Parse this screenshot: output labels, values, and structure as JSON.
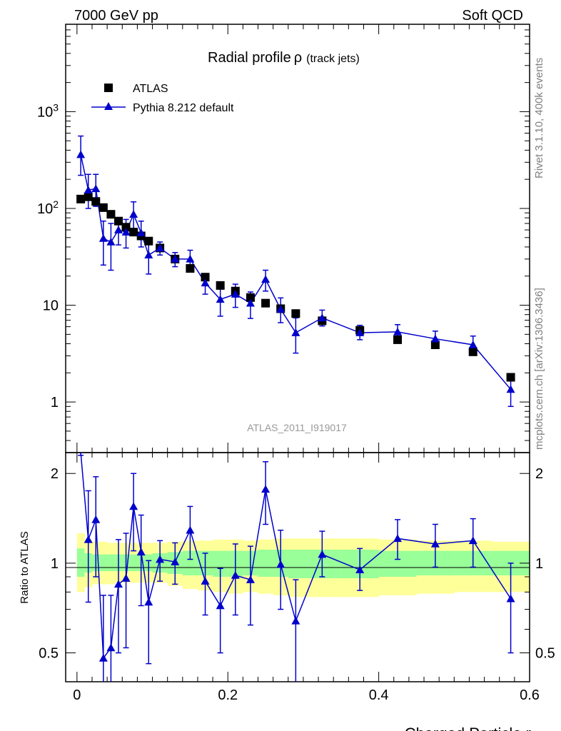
{
  "header": {
    "left": "7000 GeV pp",
    "right": "Soft QCD",
    "side_top": "Rivet 3.1.10,  400k events",
    "side_bottom": "mcplots.cern.ch [arXiv:1306.3436]"
  },
  "main_title": "Radial profile",
  "main_title_rho": "ρ",
  "main_title_sub": "(track jets)",
  "analysis_id": "ATLAS_2011_I919017",
  "legend": {
    "data": "ATLAS",
    "mc": "Pythia 8.212 default"
  },
  "colors": {
    "data": "#000000",
    "mc": "#0000cc",
    "band_yellow": "#ffff99",
    "band_green": "#99ff99"
  },
  "chart_data": [
    {
      "type": "scatter",
      "panel": "main",
      "title": "Radial profile ρ (track jets)",
      "xlabel": "Charged Particle r",
      "ylabel": "",
      "yscale": "log",
      "xlim": [
        -0.015,
        0.6
      ],
      "ylim": [
        0.3,
        8000
      ],
      "ytick_labels": [
        "1",
        "10",
        "10²",
        "10³"
      ],
      "xtick_labels": [
        "0",
        "0.2",
        "0.4",
        "0.6"
      ],
      "series": [
        {
          "name": "ATLAS",
          "x": [
            0.005,
            0.015,
            0.025,
            0.035,
            0.045,
            0.055,
            0.065,
            0.075,
            0.085,
            0.095,
            0.11,
            0.13,
            0.15,
            0.17,
            0.19,
            0.21,
            0.23,
            0.25,
            0.27,
            0.29,
            0.325,
            0.375,
            0.425,
            0.475,
            0.525,
            0.575
          ],
          "y": [
            125,
            132,
            118,
            102,
            87,
            74,
            64,
            57,
            52,
            46,
            39,
            30,
            24,
            19.5,
            16,
            14,
            12,
            10.5,
            9.2,
            8.2,
            6.9,
            5.5,
            4.4,
            3.9,
            3.3,
            1.8
          ]
        },
        {
          "name": "Pythia 8.212 default",
          "x": [
            0.005,
            0.015,
            0.025,
            0.035,
            0.045,
            0.055,
            0.065,
            0.075,
            0.085,
            0.095,
            0.11,
            0.13,
            0.15,
            0.17,
            0.19,
            0.21,
            0.23,
            0.25,
            0.27,
            0.29,
            0.325,
            0.375,
            0.425,
            0.475,
            0.525,
            0.575
          ],
          "y": [
            360,
            155,
            160,
            49,
            45,
            60,
            57,
            87,
            56,
            33,
            39,
            30,
            30,
            17,
            11.5,
            13,
            10.5,
            18.5,
            9.1,
            5.2,
            7.4,
            5.2,
            5.3,
            4.5,
            3.9,
            1.35
          ],
          "yerr_low": [
            140,
            55,
            55,
            23,
            22,
            18,
            18,
            25,
            16,
            12,
            6,
            5,
            6,
            4,
            3.8,
            3.5,
            3.2,
            4.5,
            2.5,
            2.0,
            1.3,
            0.8,
            0.9,
            0.8,
            0.8,
            0.45
          ],
          "yerr_high": [
            200,
            70,
            65,
            25,
            25,
            20,
            20,
            30,
            18,
            14,
            6,
            5,
            7,
            4,
            3.8,
            3.5,
            3.2,
            4.5,
            2.8,
            2.2,
            1.5,
            1.0,
            1.0,
            0.9,
            0.9,
            0.5
          ]
        }
      ]
    },
    {
      "type": "line",
      "panel": "ratio",
      "xlabel": "Charged Particle r",
      "ylabel": "Ratio to ATLAS",
      "yscale": "log",
      "xlim": [
        -0.015,
        0.6
      ],
      "ylim": [
        0.4,
        2.35
      ],
      "ytick_labels": [
        "0.5",
        "1",
        "2"
      ],
      "xtick_labels": [
        "0",
        "0.2",
        "0.4",
        "0.6"
      ],
      "series": [
        {
          "name": "Pythia 8.212 default",
          "x": [
            0.005,
            0.015,
            0.025,
            0.035,
            0.045,
            0.055,
            0.065,
            0.075,
            0.085,
            0.095,
            0.11,
            0.13,
            0.15,
            0.17,
            0.19,
            0.21,
            0.23,
            0.25,
            0.27,
            0.29,
            0.325,
            0.375,
            0.425,
            0.475,
            0.525,
            0.575
          ],
          "y": [
            2.9,
            1.2,
            1.4,
            0.48,
            0.52,
            0.85,
            0.89,
            1.55,
            1.09,
            0.74,
            1.03,
            1.01,
            1.29,
            0.87,
            0.72,
            0.91,
            0.88,
            1.77,
            0.99,
            0.64,
            1.07,
            0.95,
            1.21,
            1.16,
            1.19,
            0.76
          ],
          "y_low": [
            2.3,
            0.74,
            0.9,
            0.15,
            0.1,
            0.5,
            0.52,
            1.1,
            0.72,
            0.46,
            0.87,
            0.85,
            1.03,
            0.67,
            0.5,
            0.67,
            0.62,
            1.35,
            0.7,
            0.4,
            0.9,
            0.81,
            1.03,
            0.97,
            0.97,
            0.5
          ],
          "y_high": [
            3.6,
            1.75,
            1.95,
            0.78,
            0.78,
            1.2,
            1.26,
            2.0,
            1.45,
            1.02,
            1.19,
            1.17,
            1.55,
            1.08,
            0.96,
            1.16,
            1.14,
            2.19,
            1.29,
            0.88,
            1.28,
            1.12,
            1.4,
            1.35,
            1.41,
            1.0
          ]
        }
      ],
      "bands": {
        "edges": [
          0.0,
          0.01,
          0.02,
          0.03,
          0.04,
          0.05,
          0.06,
          0.07,
          0.08,
          0.09,
          0.1,
          0.12,
          0.14,
          0.16,
          0.18,
          0.2,
          0.22,
          0.24,
          0.26,
          0.28,
          0.3,
          0.35,
          0.4,
          0.45,
          0.5,
          0.55,
          0.6
        ],
        "yellow_low": [
          0.8,
          0.83,
          0.85,
          0.85,
          0.85,
          0.86,
          0.86,
          0.86,
          0.86,
          0.86,
          0.86,
          0.84,
          0.82,
          0.81,
          0.8,
          0.79,
          0.8,
          0.79,
          0.78,
          0.77,
          0.77,
          0.77,
          0.78,
          0.79,
          0.8,
          0.8
        ],
        "yellow_high": [
          1.26,
          1.2,
          1.18,
          1.18,
          1.17,
          1.17,
          1.17,
          1.17,
          1.17,
          1.17,
          1.17,
          1.18,
          1.19,
          1.19,
          1.2,
          1.2,
          1.19,
          1.2,
          1.21,
          1.21,
          1.21,
          1.21,
          1.2,
          1.19,
          1.19,
          1.18
        ],
        "green_low": [
          0.9,
          0.93,
          0.94,
          0.94,
          0.94,
          0.94,
          0.94,
          0.94,
          0.94,
          0.94,
          0.93,
          0.92,
          0.91,
          0.91,
          0.9,
          0.9,
          0.91,
          0.9,
          0.9,
          0.89,
          0.89,
          0.89,
          0.9,
          0.91,
          0.91,
          0.91
        ],
        "green_high": [
          1.12,
          1.08,
          1.07,
          1.07,
          1.07,
          1.07,
          1.07,
          1.07,
          1.07,
          1.07,
          1.08,
          1.09,
          1.1,
          1.1,
          1.1,
          1.1,
          1.1,
          1.11,
          1.11,
          1.11,
          1.11,
          1.11,
          1.1,
          1.1,
          1.1,
          1.1
        ]
      }
    }
  ]
}
